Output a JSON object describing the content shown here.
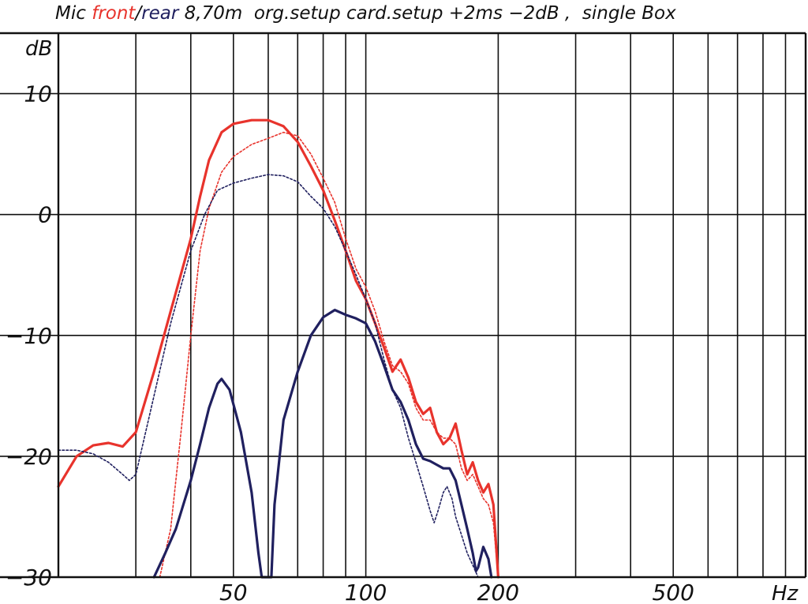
{
  "chart_data": {
    "type": "line",
    "title_parts": [
      {
        "text": "Mic ",
        "color": "#111111"
      },
      {
        "text": "front",
        "color": "#e8332c"
      },
      {
        "text": "/",
        "color": "#111111"
      },
      {
        "text": "rear",
        "color": "#20205f"
      },
      {
        "text": " 8,70m  org.setup card.setup +2ms −2dB ,  single Box",
        "color": "#111111"
      }
    ],
    "ylabel": "dB",
    "xlabel": "Hz",
    "x_scale": "log",
    "xlim": [
      20,
      1000
    ],
    "ylim": [
      -30,
      15
    ],
    "grid": true,
    "x_tick_labels": [
      {
        "value": 50,
        "label": "50"
      },
      {
        "value": 100,
        "label": "100"
      },
      {
        "value": 200,
        "label": "200"
      },
      {
        "value": 500,
        "label": "500"
      }
    ],
    "y_tick_labels": [
      {
        "value": 10,
        "label": "10"
      },
      {
        "value": 0,
        "label": "0"
      },
      {
        "value": -10,
        "label": "−10"
      },
      {
        "value": -20,
        "label": "−20"
      },
      {
        "value": -30,
        "label": "−30"
      }
    ],
    "series": [
      {
        "name": "front",
        "color": "#e8332c",
        "style": "solid",
        "points": [
          [
            20,
            -22.5
          ],
          [
            22,
            -20
          ],
          [
            24,
            -19.1
          ],
          [
            26,
            -18.9
          ],
          [
            28,
            -19.2
          ],
          [
            30,
            -18
          ],
          [
            33,
            -13
          ],
          [
            36,
            -8
          ],
          [
            40,
            -2
          ],
          [
            42,
            1.5
          ],
          [
            44,
            4.5
          ],
          [
            47,
            6.8
          ],
          [
            50,
            7.5
          ],
          [
            55,
            7.8
          ],
          [
            60,
            7.8
          ],
          [
            65,
            7.3
          ],
          [
            70,
            6
          ],
          [
            75,
            4
          ],
          [
            80,
            2
          ],
          [
            85,
            -0.5
          ],
          [
            90,
            -3
          ],
          [
            95,
            -5.5
          ],
          [
            100,
            -7
          ],
          [
            105,
            -9
          ],
          [
            110,
            -11
          ],
          [
            115,
            -13
          ],
          [
            120,
            -12
          ],
          [
            125,
            -13.5
          ],
          [
            130,
            -15.5
          ],
          [
            135,
            -16.5
          ],
          [
            140,
            -16
          ],
          [
            145,
            -18
          ],
          [
            150,
            -19
          ],
          [
            155,
            -18.5
          ],
          [
            160,
            -17.3
          ],
          [
            165,
            -19.5
          ],
          [
            170,
            -21.5
          ],
          [
            175,
            -20.5
          ],
          [
            180,
            -22
          ],
          [
            185,
            -23
          ],
          [
            190,
            -22.3
          ],
          [
            195,
            -24
          ],
          [
            200,
            -30
          ]
        ]
      },
      {
        "name": "front (org.setup)",
        "color": "#e8332c",
        "style": "dotted",
        "points": [
          [
            34,
            -30
          ],
          [
            36,
            -26
          ],
          [
            38,
            -18
          ],
          [
            40,
            -10
          ],
          [
            42,
            -3
          ],
          [
            44,
            0.5
          ],
          [
            47,
            3.5
          ],
          [
            50,
            4.8
          ],
          [
            55,
            5.8
          ],
          [
            60,
            6.3
          ],
          [
            65,
            6.8
          ],
          [
            70,
            6.5
          ],
          [
            75,
            5
          ],
          [
            80,
            3
          ],
          [
            85,
            1
          ],
          [
            90,
            -2
          ],
          [
            95,
            -4.5
          ],
          [
            100,
            -6
          ],
          [
            105,
            -8
          ],
          [
            110,
            -10.5
          ],
          [
            115,
            -12.5
          ],
          [
            120,
            -13
          ],
          [
            125,
            -14
          ],
          [
            130,
            -16
          ],
          [
            135,
            -17
          ],
          [
            140,
            -17
          ],
          [
            145,
            -18
          ],
          [
            150,
            -18.5
          ],
          [
            155,
            -18.5
          ],
          [
            160,
            -19
          ],
          [
            165,
            -21
          ],
          [
            170,
            -22
          ],
          [
            175,
            -21.5
          ],
          [
            180,
            -22.5
          ],
          [
            185,
            -23.5
          ],
          [
            190,
            -24
          ],
          [
            195,
            -25.5
          ],
          [
            200,
            -30
          ]
        ]
      },
      {
        "name": "rear",
        "color": "#20205f",
        "style": "solid",
        "points": [
          [
            33,
            -30
          ],
          [
            35,
            -28
          ],
          [
            37,
            -26
          ],
          [
            40,
            -22
          ],
          [
            42,
            -19
          ],
          [
            44,
            -16
          ],
          [
            46,
            -14
          ],
          [
            47,
            -13.6
          ],
          [
            49,
            -14.5
          ],
          [
            52,
            -18
          ],
          [
            55,
            -23
          ],
          [
            57,
            -28
          ],
          [
            58,
            -30
          ],
          [
            61,
            -30
          ],
          [
            62,
            -24
          ],
          [
            65,
            -17
          ],
          [
            70,
            -13
          ],
          [
            75,
            -10
          ],
          [
            80,
            -8.5
          ],
          [
            85,
            -7.9
          ],
          [
            90,
            -8.3
          ],
          [
            95,
            -8.6
          ],
          [
            100,
            -9
          ],
          [
            105,
            -10.5
          ],
          [
            110,
            -12.5
          ],
          [
            115,
            -14.5
          ],
          [
            120,
            -15.5
          ],
          [
            125,
            -17
          ],
          [
            130,
            -19
          ],
          [
            135,
            -20.2
          ],
          [
            140,
            -20.4
          ],
          [
            145,
            -20.7
          ],
          [
            150,
            -21
          ],
          [
            155,
            -21
          ],
          [
            160,
            -22
          ],
          [
            165,
            -24
          ],
          [
            170,
            -26
          ],
          [
            175,
            -28
          ],
          [
            178,
            -29.5
          ],
          [
            180,
            -29.2
          ],
          [
            185,
            -27.5
          ],
          [
            190,
            -28.5
          ],
          [
            193,
            -30
          ]
        ]
      },
      {
        "name": "rear (org.setup)",
        "color": "#20205f",
        "style": "dotted",
        "points": [
          [
            20,
            -19.5
          ],
          [
            22,
            -19.5
          ],
          [
            24,
            -19.8
          ],
          [
            26,
            -20.5
          ],
          [
            28,
            -21.5
          ],
          [
            29,
            -22
          ],
          [
            30,
            -21.5
          ],
          [
            33,
            -15
          ],
          [
            36,
            -9
          ],
          [
            40,
            -3
          ],
          [
            43,
            0
          ],
          [
            46,
            2
          ],
          [
            50,
            2.6
          ],
          [
            55,
            3
          ],
          [
            60,
            3.3
          ],
          [
            65,
            3.2
          ],
          [
            70,
            2.7
          ],
          [
            75,
            1.5
          ],
          [
            80,
            0.5
          ],
          [
            85,
            -1
          ],
          [
            90,
            -3
          ],
          [
            95,
            -5
          ],
          [
            100,
            -7
          ],
          [
            105,
            -9
          ],
          [
            110,
            -12
          ],
          [
            115,
            -14.5
          ],
          [
            120,
            -16
          ],
          [
            125,
            -18.5
          ],
          [
            130,
            -20.5
          ],
          [
            135,
            -22.5
          ],
          [
            140,
            -24.5
          ],
          [
            143,
            -25.5
          ],
          [
            146,
            -24.5
          ],
          [
            150,
            -23
          ],
          [
            153,
            -22.5
          ],
          [
            157,
            -23.5
          ],
          [
            160,
            -25
          ],
          [
            165,
            -26.5
          ],
          [
            170,
            -28
          ],
          [
            175,
            -29
          ],
          [
            180,
            -30
          ]
        ]
      }
    ]
  }
}
